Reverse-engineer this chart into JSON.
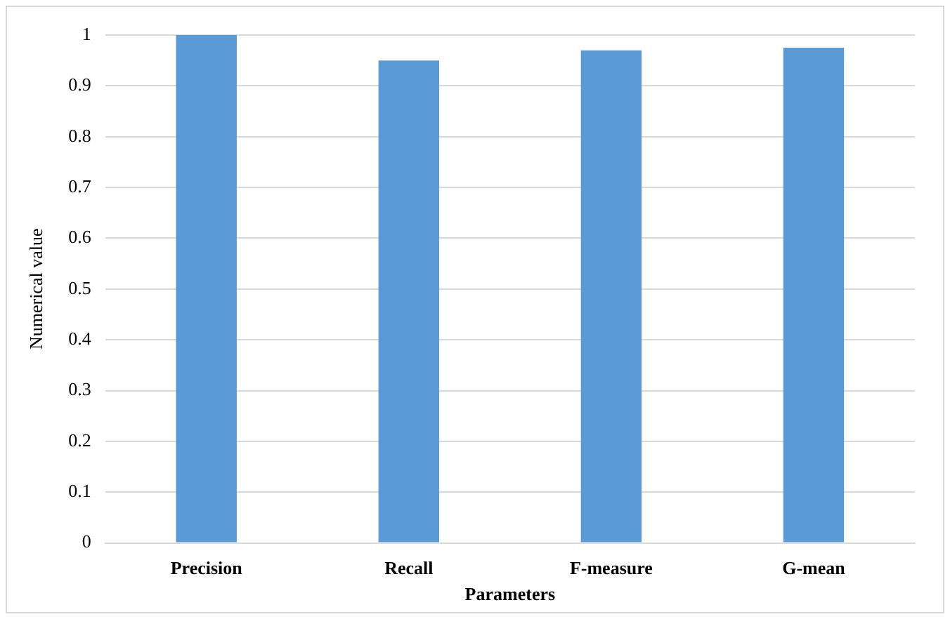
{
  "chart_data": {
    "type": "bar",
    "xlabel": "Parameters",
    "ylabel": "Numerical value",
    "categories": [
      "Precision",
      "Recall",
      "F-measure",
      "G-mean"
    ],
    "values": [
      1.0,
      0.95,
      0.97,
      0.975
    ],
    "color": "#5b9bd5",
    "ylim": [
      0,
      1
    ],
    "yticks": [
      0,
      0.1,
      0.2,
      0.3,
      0.4,
      0.5,
      0.6,
      0.7,
      0.8,
      0.9,
      1
    ],
    "grid": "y",
    "legend": false
  }
}
